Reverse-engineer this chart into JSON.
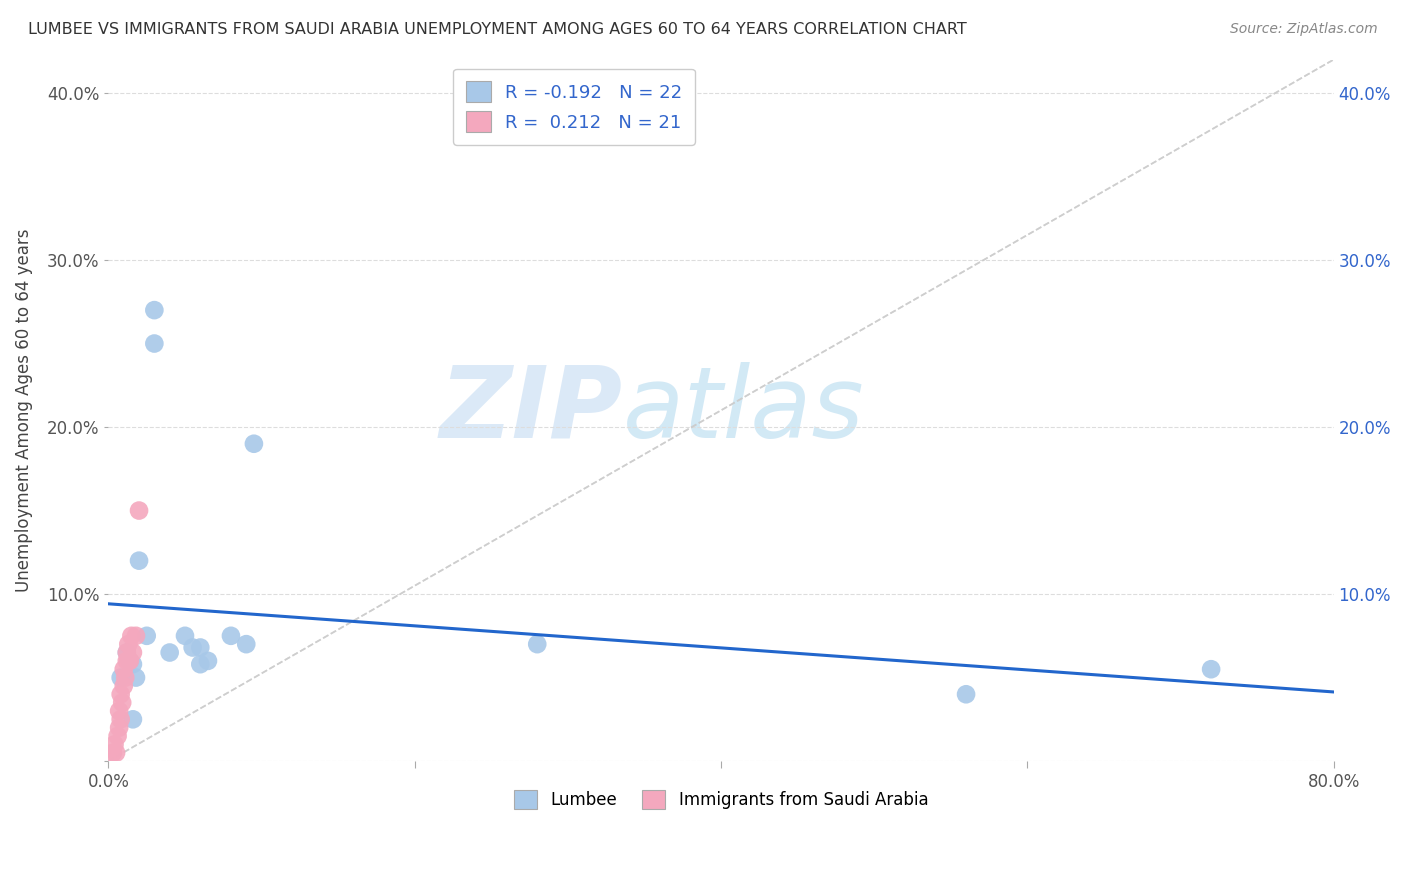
{
  "title": "LUMBEE VS IMMIGRANTS FROM SAUDI ARABIA UNEMPLOYMENT AMONG AGES 60 TO 64 YEARS CORRELATION CHART",
  "source": "Source: ZipAtlas.com",
  "ylabel": "Unemployment Among Ages 60 to 64 years",
  "xlim": [
    0.0,
    0.8
  ],
  "ylim": [
    0.0,
    0.42
  ],
  "xticks": [
    0.0,
    0.2,
    0.4,
    0.6,
    0.8
  ],
  "xticklabels": [
    "0.0%",
    "",
    "",
    "",
    "80.0%"
  ],
  "yticks": [
    0.0,
    0.1,
    0.2,
    0.3,
    0.4
  ],
  "yticklabels_left": [
    "",
    "10.0%",
    "20.0%",
    "30.0%",
    "40.0%"
  ],
  "yticklabels_right": [
    "",
    "10.0%",
    "20.0%",
    "30.0%",
    "40.0%"
  ],
  "lumbee_color": "#a8c8e8",
  "saudi_color": "#f4a8be",
  "trend_lumbee_color": "#2266cc",
  "background_color": "#ffffff",
  "watermark_zip": "ZIP",
  "watermark_atlas": "atlas",
  "legend_R_lumbee": "R = -0.192",
  "legend_N_lumbee": "N = 22",
  "legend_R_saudi": "R =  0.212",
  "legend_N_saudi": "N = 21",
  "lumbee_x": [
    0.008,
    0.012,
    0.014,
    0.016,
    0.016,
    0.018,
    0.02,
    0.025,
    0.03,
    0.03,
    0.04,
    0.05,
    0.055,
    0.06,
    0.06,
    0.065,
    0.08,
    0.09,
    0.095,
    0.28,
    0.56,
    0.72
  ],
  "lumbee_y": [
    0.05,
    0.065,
    0.06,
    0.058,
    0.025,
    0.05,
    0.12,
    0.075,
    0.27,
    0.25,
    0.065,
    0.075,
    0.068,
    0.068,
    0.058,
    0.06,
    0.075,
    0.07,
    0.19,
    0.07,
    0.04,
    0.055
  ],
  "saudi_x": [
    0.003,
    0.004,
    0.005,
    0.006,
    0.007,
    0.007,
    0.008,
    0.008,
    0.009,
    0.01,
    0.01,
    0.011,
    0.012,
    0.012,
    0.013,
    0.013,
    0.014,
    0.015,
    0.016,
    0.018,
    0.02
  ],
  "saudi_y": [
    0.005,
    0.01,
    0.005,
    0.015,
    0.02,
    0.03,
    0.025,
    0.04,
    0.035,
    0.045,
    0.055,
    0.05,
    0.06,
    0.065,
    0.06,
    0.07,
    0.06,
    0.075,
    0.065,
    0.075,
    0.15
  ]
}
